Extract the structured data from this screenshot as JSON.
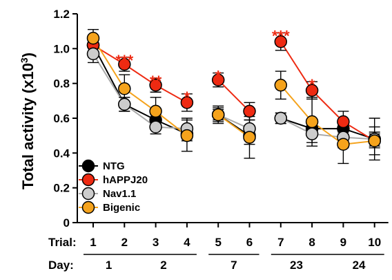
{
  "chart_data": {
    "type": "line",
    "ylabel": "Total activity (x10",
    "ylabel_superscript": "3",
    "ylabel_close": ")",
    "ylim": [
      0,
      1.2
    ],
    "yticks": [
      "0",
      "0.2",
      "0.4",
      "0.6",
      "0.8",
      "1.0",
      "1.2"
    ],
    "trial_label": "Trial:",
    "day_label": "Day:",
    "x": [
      1,
      2,
      3,
      4,
      5,
      6,
      7,
      8,
      9,
      10
    ],
    "x_tick_labels": [
      "1",
      "2",
      "3",
      "4",
      "5",
      "6",
      "7",
      "8",
      "9",
      "10"
    ],
    "segments": [
      [
        1,
        2,
        3,
        4
      ],
      [
        5,
        6
      ],
      [
        7,
        8,
        9,
        10
      ]
    ],
    "days": [
      {
        "label": "1",
        "at": 1.5
      },
      {
        "label": "2",
        "at": 3.25
      },
      {
        "label": "7",
        "at": 5.5
      },
      {
        "label": "23",
        "at": 7.5
      },
      {
        "label": "24",
        "at": 9.5
      }
    ],
    "day_lines": [
      [
        1,
        4
      ],
      [
        5,
        6
      ],
      [
        7,
        10
      ]
    ],
    "series": [
      {
        "name": "NTG",
        "color": "#000000",
        "values": [
          1.02,
          0.68,
          0.59,
          0.51,
          0.62,
          0.5,
          0.6,
          0.54,
          0.54,
          0.48
        ],
        "errors": [
          0.04,
          0.04,
          0.03,
          0.04,
          0.03,
          0.05,
          0.03,
          0.04,
          0.03,
          0.04
        ]
      },
      {
        "name": "hAPPJ20",
        "color": "#ee2a12",
        "values": [
          1.02,
          0.91,
          0.79,
          0.69,
          0.82,
          0.64,
          1.04,
          0.76,
          0.58,
          0.47
        ],
        "errors": [
          0.04,
          0.04,
          0.04,
          0.05,
          0.04,
          0.05,
          0.05,
          0.05,
          0.06,
          0.04
        ]
      },
      {
        "name": "Nav1.1",
        "color": "#cccccc",
        "values": [
          0.97,
          0.68,
          0.55,
          0.54,
          0.62,
          0.54,
          0.6,
          0.51,
          0.49,
          0.48
        ],
        "errors": [
          0.05,
          0.04,
          0.04,
          0.06,
          0.04,
          0.05,
          0.03,
          0.05,
          0.06,
          0.12
        ]
      },
      {
        "name": "Bigenic",
        "color": "#f5a31c",
        "values": [
          1.06,
          0.77,
          0.64,
          0.5,
          0.62,
          0.49,
          0.79,
          0.58,
          0.45,
          0.47
        ],
        "errors": [
          0.05,
          0.08,
          0.08,
          0.09,
          0.05,
          0.12,
          0.08,
          0.14,
          0.11,
          0.08
        ]
      }
    ],
    "significance": [
      {
        "x": 2,
        "label": "***",
        "y": 0.95
      },
      {
        "x": 3,
        "label": "**",
        "y": 0.83
      },
      {
        "x": 4,
        "label": "*",
        "y": 0.74
      },
      {
        "x": 5,
        "label": "*",
        "y": 0.86
      },
      {
        "x": 7,
        "label": "***",
        "y": 1.09
      },
      {
        "x": 8,
        "label": "*",
        "y": 0.81
      }
    ],
    "significance_color": "#ee2a12",
    "legend_position": "lower-left"
  }
}
